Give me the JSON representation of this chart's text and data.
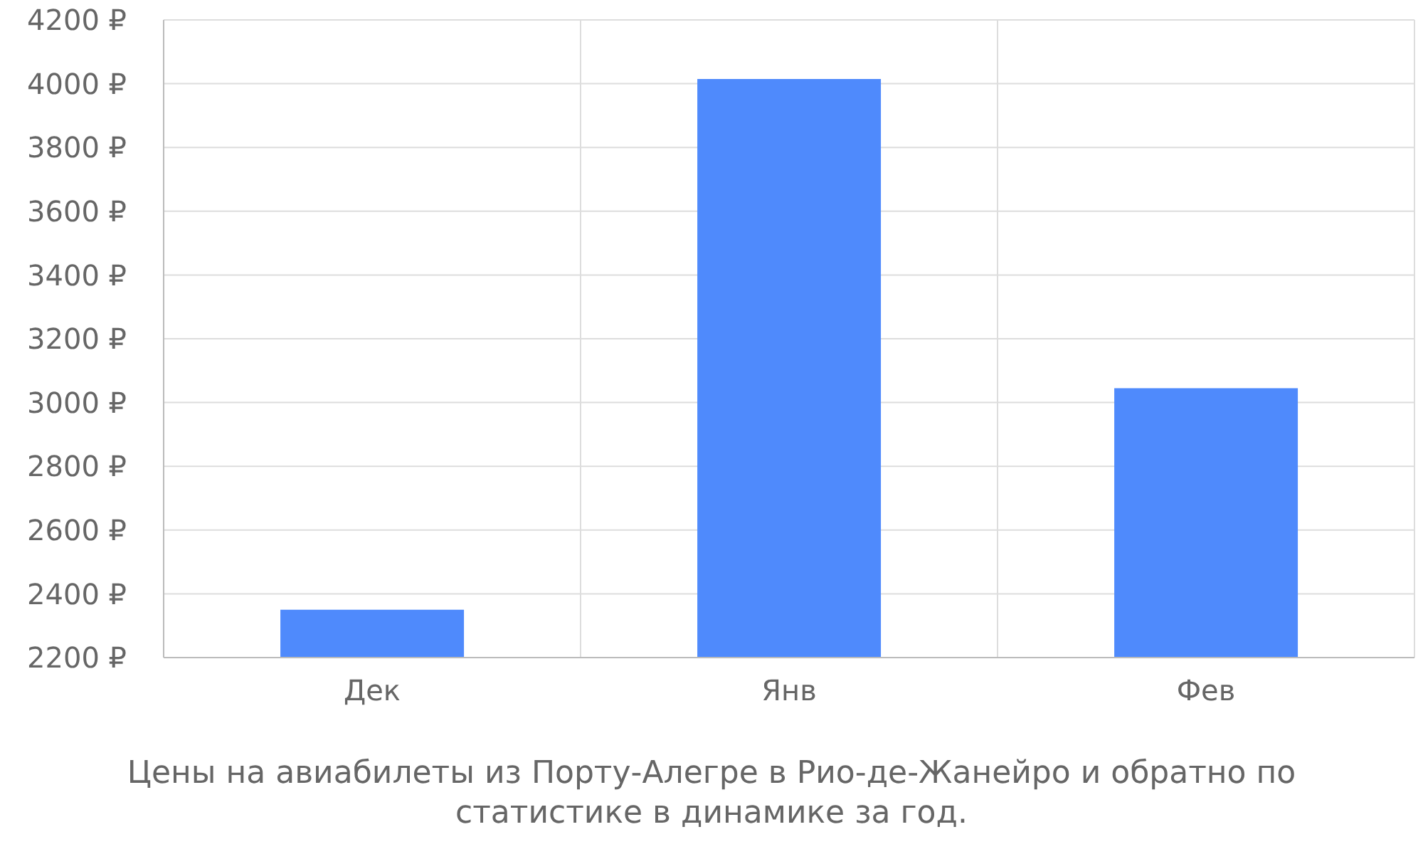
{
  "chart_data": {
    "type": "bar",
    "categories": [
      "Дек",
      "Янв",
      "Фев"
    ],
    "values": [
      2350,
      4015,
      3045
    ],
    "color": "#4f8afc",
    "ylim": [
      2200,
      4200
    ],
    "yticks": [
      {
        "value": 2200,
        "label": "2200 ₽"
      },
      {
        "value": 2400,
        "label": "2400 ₽"
      },
      {
        "value": 2600,
        "label": "2600 ₽"
      },
      {
        "value": 2800,
        "label": "2800 ₽"
      },
      {
        "value": 3000,
        "label": "3000 ₽"
      },
      {
        "value": 3200,
        "label": "3200 ₽"
      },
      {
        "value": 3400,
        "label": "3400 ₽"
      },
      {
        "value": 3600,
        "label": "3600 ₽"
      },
      {
        "value": 3800,
        "label": "3800 ₽"
      },
      {
        "value": 4000,
        "label": "4000 ₽"
      },
      {
        "value": 4200,
        "label": "4200 ₽"
      }
    ],
    "grid": true,
    "annotations": [
      "Цены на авиабилеты из Порту-Алегре в Рио-де-Жанейро и обратно по статистике в динамике за год."
    ]
  }
}
